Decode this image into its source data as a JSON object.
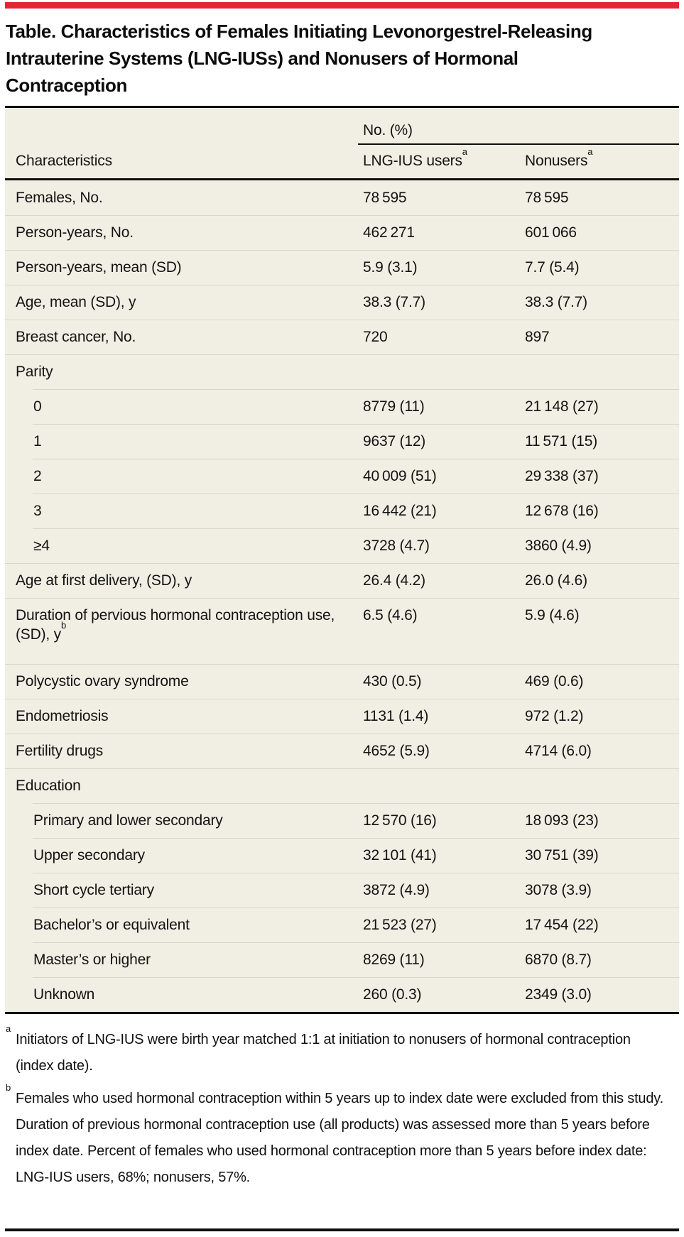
{
  "colors": {
    "accent_red": "#e32530",
    "table_background": "#f1efe4",
    "row_divider": "#d9d6c8",
    "rule_black": "#0d0d0d"
  },
  "title": "Table. Characteristics of Females Initiating Levonorgestrel-Releasing Intrauterine Systems (LNG-IUSs) and Nonusers of Hormonal Contraception",
  "table": {
    "spanner_label": "No. (%)",
    "columns": [
      {
        "label": "Characteristics"
      },
      {
        "label": "LNG-IUS users",
        "sup": "a"
      },
      {
        "label": "Nonusers",
        "sup": "a"
      }
    ],
    "rows": [
      {
        "type": "row",
        "label": "Females, No.",
        "v1": "78 595",
        "v2": "78 595"
      },
      {
        "type": "row",
        "label": "Person-years, No.",
        "v1": "462 271",
        "v2": "601 066"
      },
      {
        "type": "row",
        "label": "Person-years, mean (SD)",
        "v1": "5.9 (3.1)",
        "v2": "7.7 (5.4)"
      },
      {
        "type": "row",
        "label": "Age, mean (SD), y",
        "v1": "38.3 (7.7)",
        "v2": "38.3 (7.7)"
      },
      {
        "type": "row",
        "label": "Breast cancer, No.",
        "v1": "720",
        "v2": "897"
      },
      {
        "type": "group",
        "label": "Parity",
        "v1": "",
        "v2": ""
      },
      {
        "type": "sub",
        "label": "0",
        "v1": "8779 (11)",
        "v2": "21 148 (27)"
      },
      {
        "type": "sub",
        "label": "1",
        "v1": "9637 (12)",
        "v2": "11 571 (15)"
      },
      {
        "type": "sub",
        "label": "2",
        "v1": "40 009 (51)",
        "v2": "29 338 (37)"
      },
      {
        "type": "sub",
        "label": "3",
        "v1": "16 442 (21)",
        "v2": "12 678 (16)"
      },
      {
        "type": "sub",
        "label": "≥4",
        "v1": "3728 (4.7)",
        "v2": "3860 (4.9)"
      },
      {
        "type": "row",
        "label": "Age at first delivery, (SD), y",
        "v1": "26.4 (4.2)",
        "v2": "26.0 (4.6)"
      },
      {
        "type": "row two",
        "label": "Duration of pervious hormonal contraception use, (SD), y",
        "sup": "b",
        "v1": "6.5 (4.6)",
        "v2": "5.9 (4.6)"
      },
      {
        "type": "row",
        "label": "Polycystic ovary syndrome",
        "v1": "430 (0.5)",
        "v2": "469 (0.6)"
      },
      {
        "type": "row",
        "label": "Endometriosis",
        "v1": "1131 (1.4)",
        "v2": "972 (1.2)"
      },
      {
        "type": "row",
        "label": "Fertility drugs",
        "v1": "4652 (5.9)",
        "v2": "4714 (6.0)"
      },
      {
        "type": "group",
        "label": "Education",
        "v1": "",
        "v2": ""
      },
      {
        "type": "sub",
        "label": "Primary and lower secondary",
        "v1": "12 570 (16)",
        "v2": "18 093 (23)"
      },
      {
        "type": "sub",
        "label": "Upper secondary",
        "v1": "32 101 (41)",
        "v2": "30 751 (39)"
      },
      {
        "type": "sub",
        "label": "Short cycle tertiary",
        "v1": "3872 (4.9)",
        "v2": "3078 (3.9)"
      },
      {
        "type": "sub",
        "label": "Bachelor’s or equivalent",
        "v1": "21 523 (27)",
        "v2": "17 454 (22)"
      },
      {
        "type": "sub",
        "label": "Master’s or higher",
        "v1": "8269 (11)",
        "v2": "6870 (8.7)"
      },
      {
        "type": "sub",
        "label": "Unknown",
        "v1": "260 (0.3)",
        "v2": "2349 (3.0)"
      }
    ]
  },
  "footnotes": [
    {
      "marker": "a",
      "text": "Initiators of LNG-IUS were birth year matched 1:1 at initiation to nonusers of hormonal contraception (index date)."
    },
    {
      "marker": "b",
      "text": "Females who used hormonal contraception within 5 years up to index date were excluded from this study. Duration of previous hormonal contraception use (all products) was assessed more than 5 years before index date. Percent of females who used hormonal contraception more than 5 years before index date: LNG-IUS users, 68%; nonusers, 57%."
    }
  ]
}
